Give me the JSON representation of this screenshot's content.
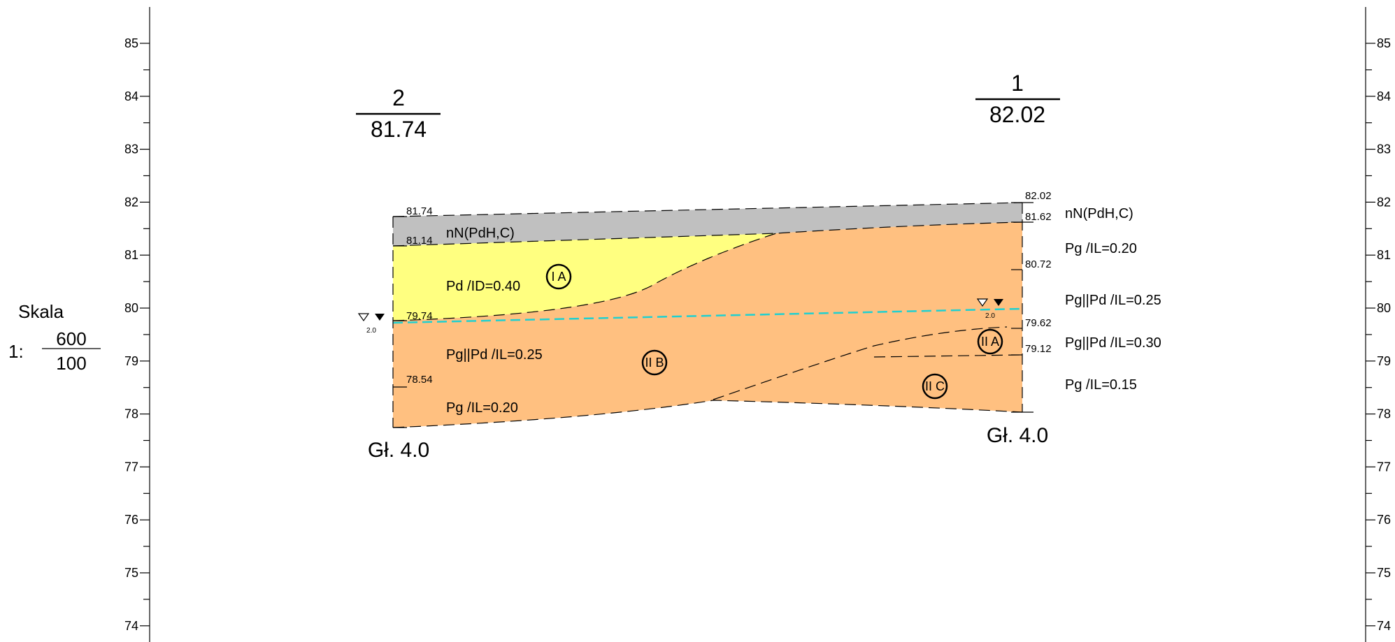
{
  "scale": {
    "title": "Skala",
    "prefix": "1:",
    "numerator": "600",
    "denominator": "100"
  },
  "axis": {
    "labels": [
      "85",
      "84",
      "83",
      "82",
      "81",
      "80",
      "79",
      "78",
      "77",
      "76",
      "75",
      "74"
    ]
  },
  "boreholes": [
    {
      "number": "2",
      "elevation": "81.74",
      "depth_label": "Gł. 4.0",
      "water_depth": "2.0",
      "level_labels": [
        "81.74",
        "81.14",
        "79.74",
        "78.54"
      ]
    },
    {
      "number": "1",
      "elevation": "82.02",
      "depth_label": "Gł. 4.0",
      "water_depth": "2.0",
      "level_labels": [
        "82.02",
        "81.62",
        "80.72",
        "79.62",
        "79.12"
      ]
    }
  ],
  "layer_labels_left": [
    "nN(PdH,C)",
    "Pd /ID=0.40",
    "Pg||Pd /IL=0.25",
    "Pg /IL=0.20"
  ],
  "layer_labels_right": [
    "nN(PdH,C)",
    "Pg /IL=0.20",
    "Pg||Pd /IL=0.25",
    "Pg||Pd /IL=0.30",
    "Pg /IL=0.15"
  ],
  "zone_markers": [
    "I A",
    "II B",
    "II A",
    "II C"
  ],
  "colors": {
    "fill_fill": "#c0c0c0",
    "sand": "#ffff80",
    "clay": "#ffc080",
    "water_table": "#20d0d0"
  }
}
